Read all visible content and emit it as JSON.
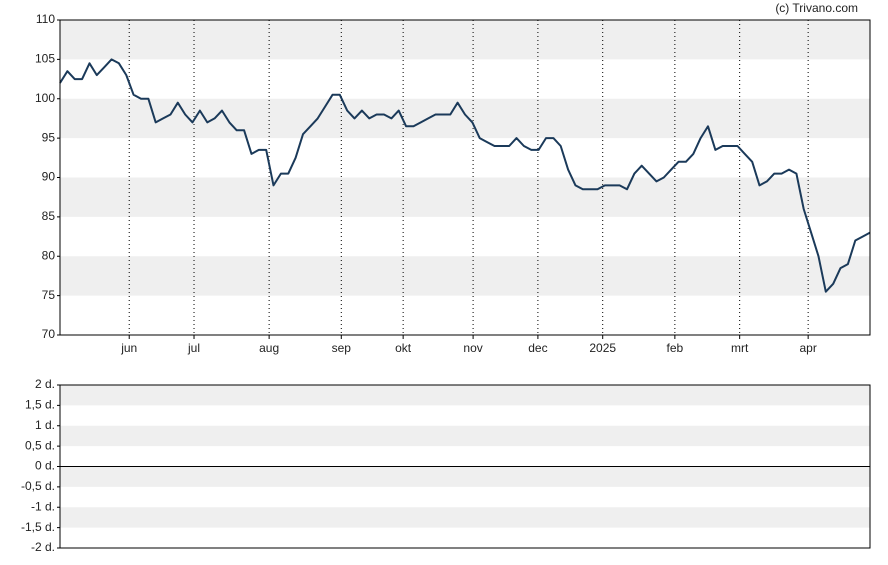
{
  "attribution": "(c) Trivano.com",
  "chart_data": [
    {
      "type": "line",
      "xlim": [
        0,
        110
      ],
      "xticks": [
        {
          "value": 9.4,
          "label": "jun"
        },
        {
          "value": 18.2,
          "label": "jul"
        },
        {
          "value": 28.4,
          "label": "aug"
        },
        {
          "value": 38.2,
          "label": "sep"
        },
        {
          "value": 46.6,
          "label": "okt"
        },
        {
          "value": 56.1,
          "label": "nov"
        },
        {
          "value": 64.9,
          "label": "dec"
        },
        {
          "value": 73.7,
          "label": "2025"
        },
        {
          "value": 83.5,
          "label": "feb"
        },
        {
          "value": 92.3,
          "label": "mrt"
        },
        {
          "value": 101.6,
          "label": "apr"
        }
      ],
      "ylim": [
        70,
        110
      ],
      "yticks": [
        70,
        75,
        80,
        85,
        90,
        95,
        100,
        105,
        110
      ],
      "grid": true,
      "series": [
        {
          "color": "#1b3a5a",
          "values": [
            102,
            103.5,
            102.5,
            102.5,
            104.5,
            103,
            104,
            105,
            104.5,
            103,
            100.5,
            100,
            100,
            97,
            97.5,
            98,
            99.5,
            98,
            97,
            98.5,
            97,
            97.5,
            98.5,
            97,
            96,
            96,
            93,
            93.5,
            93.5,
            89,
            90.5,
            90.5,
            92.5,
            95.5,
            96.5,
            97.5,
            99,
            100.5,
            100.5,
            98.5,
            97.5,
            98.5,
            97.5,
            98,
            98,
            97.5,
            98.5,
            96.5,
            96.5,
            97,
            97.5,
            98,
            98,
            98,
            99.5,
            98,
            97,
            95,
            94.5,
            94,
            94,
            94,
            95,
            94,
            93.5,
            93.5,
            95,
            95,
            94,
            91,
            89,
            88.5,
            88.5,
            88.5,
            89,
            89,
            89,
            88.5,
            90.5,
            91.5,
            90.5,
            89.5,
            90,
            91,
            92,
            92,
            93,
            95,
            96.5,
            93.5,
            94,
            94,
            94,
            93,
            92,
            89,
            89.5,
            90.5,
            90.5,
            91,
            90.5,
            86,
            83,
            80,
            75.5,
            76.5,
            78.5,
            79,
            82,
            82.5,
            83
          ]
        }
      ]
    },
    {
      "type": "line",
      "ylim": [
        -2,
        2
      ],
      "yticks": [
        {
          "value": -2,
          "label": "-2 d."
        },
        {
          "value": -1.5,
          "label": "-1,5 d."
        },
        {
          "value": -1,
          "label": "-1 d."
        },
        {
          "value": -0.5,
          "label": "-0,5 d."
        },
        {
          "value": 0,
          "label": "0 d."
        },
        {
          "value": 0.5,
          "label": "0,5 d."
        },
        {
          "value": 1,
          "label": "1 d."
        },
        {
          "value": 1.5,
          "label": "1,5 d."
        },
        {
          "value": 2,
          "label": "2 d."
        }
      ],
      "grid": true,
      "series": []
    }
  ]
}
